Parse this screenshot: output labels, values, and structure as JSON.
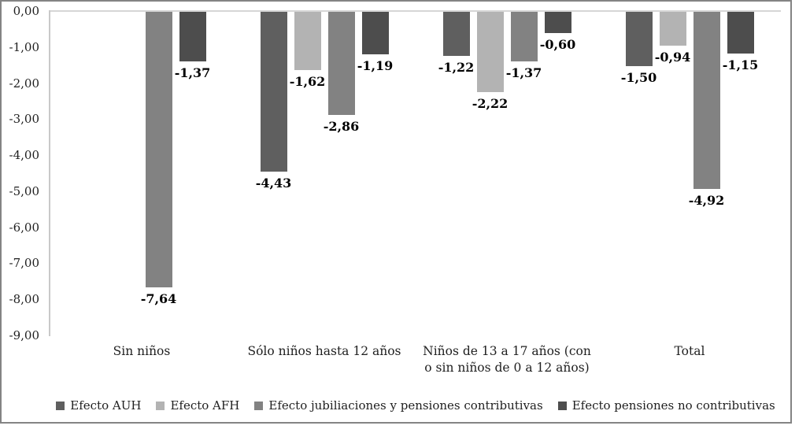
{
  "chart_data": {
    "type": "bar",
    "title": "",
    "xlabel": "",
    "ylabel": "",
    "ylim": [
      -9,
      0
    ],
    "grid": "zero-line-only",
    "legend_position": "bottom",
    "decimal_separator": ",",
    "ytick_labels": [
      "0,00",
      "-1,00",
      "-2,00",
      "-3,00",
      "-4,00",
      "-5,00",
      "-6,00",
      "-7,00",
      "-8,00",
      "-9,00"
    ],
    "categories": [
      "Sin niños",
      "Sólo niños hasta 12 años",
      "Niños de 13 a 17 años (con o sin niños de 0 a 12 años)",
      "Total"
    ],
    "series": [
      {
        "name": "Efecto AUH",
        "color": "#5f5f5f",
        "values": [
          0,
          -4.43,
          -1.22,
          -1.5
        ],
        "labels": [
          "",
          "-4,43",
          "-1,22",
          "-1,50"
        ]
      },
      {
        "name": "Efecto AFH",
        "color": "#b3b3b3",
        "values": [
          0,
          -1.62,
          -2.22,
          -0.94
        ],
        "labels": [
          "",
          "-1,62",
          "-2,22",
          "-0,94"
        ]
      },
      {
        "name": "Efecto jubiliaciones y pensiones contributivas",
        "color": "#828282",
        "values": [
          -7.64,
          -2.86,
          -1.37,
          -4.92
        ],
        "labels": [
          "-7,64",
          "-2,86",
          "-1,37",
          "-4,92"
        ]
      },
      {
        "name": "Efecto pensiones no contributivas",
        "color": "#4d4d4d",
        "values": [
          -1.37,
          -1.19,
          -0.6,
          -1.15
        ],
        "labels": [
          "-1,37",
          "-1,19",
          "-0,60",
          "-1,15"
        ]
      }
    ]
  }
}
